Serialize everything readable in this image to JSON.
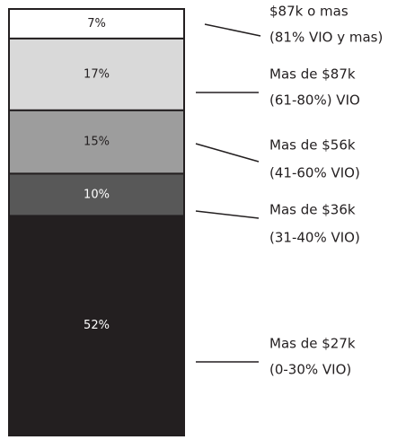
{
  "chart_data": {
    "type": "stacked_bar",
    "labels": [
      [
        "$87k o mas",
        "(81% VIO y mas)"
      ],
      [
        "Mas de $87k",
        "(61-80%) VIO"
      ],
      [
        "Mas de $56k",
        "(41-60% VIO)"
      ],
      [
        "Mas de $36k",
        "(31-40% VIO)"
      ],
      [
        "Mas de $27k",
        "(0-30% VIO)"
      ]
    ],
    "values": [
      7,
      17,
      15,
      10,
      52
    ],
    "value_labels": [
      "7%",
      "17%",
      "15%",
      "10%",
      "52%"
    ],
    "colors": [
      "#ffffff",
      "#d9d9d9",
      "#9d9d9d",
      "#585858",
      "#231f20"
    ]
  }
}
